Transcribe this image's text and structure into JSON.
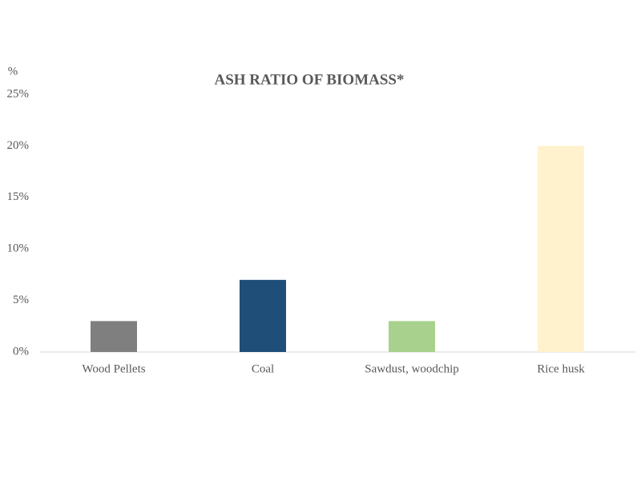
{
  "chart_data": {
    "type": "bar",
    "title": "ASH RATIO OF BIOMASS*",
    "y_label": "%",
    "categories": [
      "Wood Pellets",
      "Coal",
      "Sawdust, woodchip",
      "Rice husk"
    ],
    "values": [
      3,
      7,
      3,
      20
    ],
    "colors": [
      "#7f7f7f",
      "#1f4e79",
      "#a9d18e",
      "#fff2cc"
    ],
    "ylim": [
      0,
      25
    ],
    "yticks": [
      {
        "value": 0,
        "label": "0%"
      },
      {
        "value": 5,
        "label": "5%"
      },
      {
        "value": 10,
        "label": "10%"
      },
      {
        "value": 15,
        "label": "15%"
      },
      {
        "value": 20,
        "label": "20%"
      },
      {
        "value": 25,
        "label": "25%"
      }
    ],
    "grid": false
  }
}
